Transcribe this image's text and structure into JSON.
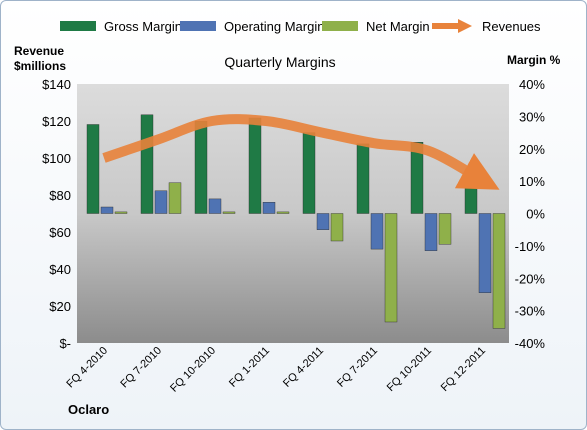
{
  "chart_data": {
    "type": "bar",
    "title": "Quarterly Margins",
    "left_axis_title": "Revenue $millions",
    "right_axis_title": "Margin %",
    "company": "Oclaro",
    "categories": [
      "FQ 4-2010",
      "FQ 7-2010",
      "FQ 10-2010",
      "FQ 1-2011",
      "FQ 4-2011",
      "FQ 7-2011",
      "FQ 10-2011",
      "FQ 12-2011"
    ],
    "left_ticks": [
      "$-",
      "$20",
      "$40",
      "$60",
      "$80",
      "$100",
      "$120",
      "$140"
    ],
    "right_ticks": [
      "-40%",
      "-30%",
      "-20%",
      "-10%",
      "0%",
      "10%",
      "20%",
      "30%",
      "40%"
    ],
    "left_ylim": [
      0,
      140
    ],
    "right_ylim": [
      -40,
      40
    ],
    "grid": false,
    "legend_position": "top",
    "series": [
      {
        "name": "Gross Margin",
        "axis": "right",
        "color": "#1f7a45",
        "values": [
          27.5,
          30.5,
          28.5,
          29.5,
          25,
          21.5,
          22,
          12.5
        ]
      },
      {
        "name": "Operating Margin",
        "axis": "right",
        "color": "#4f73b3",
        "values": [
          2,
          7,
          4.5,
          3.5,
          -5,
          -11,
          -11.5,
          -24.5
        ]
      },
      {
        "name": "Net Margin",
        "axis": "right",
        "color": "#8fb04a",
        "values": [
          0.5,
          9.5,
          0.5,
          0.5,
          -8.5,
          -33.5,
          -9.5,
          -35.5
        ]
      }
    ],
    "line_series": {
      "name": "Revenues",
      "axis": "left",
      "color": "#e8823a",
      "values": [
        100,
        110,
        120,
        120,
        114,
        108,
        104,
        88
      ]
    }
  }
}
